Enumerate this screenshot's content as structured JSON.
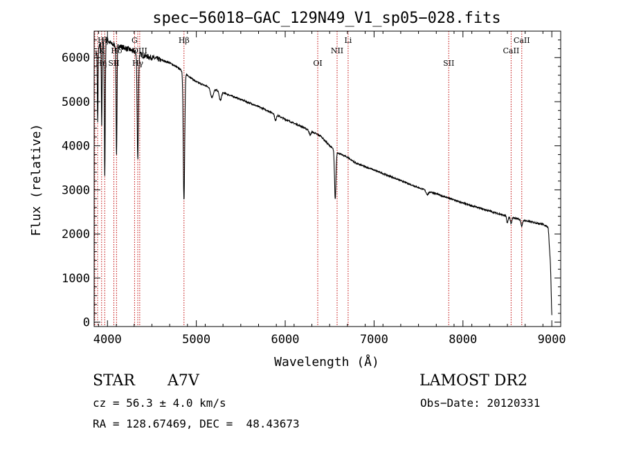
{
  "chart_data": {
    "type": "line",
    "title": "spec−56018−GAC_129N49_V1_sp05−028.fits",
    "xlabel": "Wavelength (Å)",
    "ylabel": "Flux (relative)",
    "xlim": [
      3850,
      9100
    ],
    "ylim": [
      -100,
      6600
    ],
    "x_ticks": [
      4000,
      5000,
      6000,
      7000,
      8000,
      9000
    ],
    "y_ticks": [
      0,
      1000,
      2000,
      3000,
      4000,
      5000,
      6000
    ],
    "x_tick_labels": [
      "4000",
      "5000",
      "6000",
      "7000",
      "8000",
      "9000"
    ],
    "y_tick_labels": [
      "0",
      "1000",
      "2000",
      "3000",
      "4000",
      "5000",
      "6000"
    ],
    "grid": false,
    "line_color": "#000000",
    "marker_color": "#c00000",
    "continuum": [
      [
        3870,
        6100
      ],
      [
        3900,
        6250
      ],
      [
        3950,
        6380
      ],
      [
        4000,
        6400
      ],
      [
        4050,
        6300
      ],
      [
        4150,
        6250
      ],
      [
        4250,
        6180
      ],
      [
        4400,
        6050
      ],
      [
        4500,
        6000
      ],
      [
        4600,
        5950
      ],
      [
        4700,
        5880
      ],
      [
        4800,
        5760
      ],
      [
        4900,
        5600
      ],
      [
        5000,
        5450
      ],
      [
        5200,
        5280
      ],
      [
        5400,
        5130
      ],
      [
        5600,
        4970
      ],
      [
        5800,
        4800
      ],
      [
        6000,
        4600
      ],
      [
        6200,
        4420
      ],
      [
        6400,
        4220
      ],
      [
        6500,
        4000
      ],
      [
        6600,
        3830
      ],
      [
        6700,
        3740
      ],
      [
        6800,
        3600
      ],
      [
        7000,
        3450
      ],
      [
        7200,
        3290
      ],
      [
        7500,
        3050
      ],
      [
        7800,
        2840
      ],
      [
        8000,
        2700
      ],
      [
        8300,
        2520
      ],
      [
        8500,
        2400
      ],
      [
        8700,
        2300
      ],
      [
        8900,
        2220
      ],
      [
        8960,
        2150
      ],
      [
        8985,
        1300
      ],
      [
        9000,
        150
      ]
    ],
    "absorption_features": [
      [
        3890,
        1700,
        4
      ],
      [
        3935,
        1900,
        4
      ],
      [
        3970,
        3100,
        5
      ],
      [
        4102,
        2500,
        5
      ],
      [
        4341,
        2400,
        7
      ],
      [
        4861,
        2900,
        8
      ],
      [
        5175,
        200,
        15
      ],
      [
        5270,
        200,
        12
      ],
      [
        5890,
        150,
        8
      ],
      [
        6280,
        100,
        10
      ],
      [
        6563,
        1100,
        8
      ],
      [
        7600,
        80,
        15
      ],
      [
        8500,
        150,
        8
      ],
      [
        8542,
        150,
        8
      ],
      [
        8662,
        150,
        8
      ]
    ],
    "line_markers": [
      {
        "label": "Hη",
        "wavelength": 3835,
        "row": 3
      },
      {
        "label": "Hζ",
        "wavelength": 3889,
        "row": 1
      },
      {
        "label": "K",
        "wavelength": 3934,
        "row": 2
      },
      {
        "label": "H",
        "wavelength": 3969,
        "row": 1
      },
      {
        "label": "Hδ",
        "wavelength": 4102,
        "row": 2
      },
      {
        "label": "SII",
        "wavelength": 4072,
        "row": 3
      },
      {
        "label": "G",
        "wavelength": 4305,
        "row": 1
      },
      {
        "label": "Hγ",
        "wavelength": 4341,
        "row": 3
      },
      {
        "label": "OIII",
        "wavelength": 4363,
        "row": 2
      },
      {
        "label": "Hβ",
        "wavelength": 4861,
        "row": 1
      },
      {
        "label": "OI",
        "wavelength": 6366,
        "row": 3
      },
      {
        "label": "NII",
        "wavelength": 6584,
        "row": 2
      },
      {
        "label": "Li",
        "wavelength": 6708,
        "row": 1
      },
      {
        "label": "SII",
        "wavelength": 7840,
        "row": 3
      },
      {
        "label": "CaII",
        "wavelength": 8542,
        "row": 2
      },
      {
        "label": "CaII",
        "wavelength": 8662,
        "row": 1
      }
    ]
  },
  "info": {
    "class_label": "STAR",
    "subclass": "A7V",
    "survey": "LAMOST DR2",
    "cz_text": "cz = 56.3 ± 4.0 km/s",
    "obs_date_text": "Obs−Date: 20120331",
    "radec_text": "RA = 128.67469, DEC =  48.43673"
  }
}
